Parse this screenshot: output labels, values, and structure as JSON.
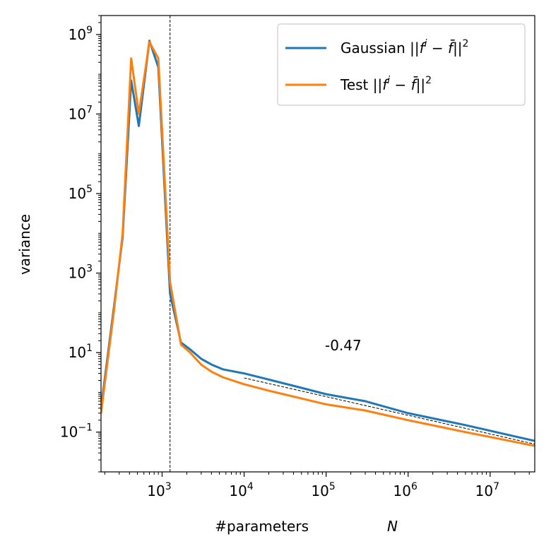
{
  "chart_data": {
    "type": "line",
    "xscale": "log",
    "yscale": "log",
    "xlabel": "#parameters",
    "xlabel_symbol": "N",
    "ylabel": "variance",
    "xlim": [
      180,
      35000000
    ],
    "ylim": [
      0.01,
      3000000000
    ],
    "x_ticks": [
      {
        "value": 1000,
        "base": "10",
        "exp": "3"
      },
      {
        "value": 10000,
        "base": "10",
        "exp": "4"
      },
      {
        "value": 100000,
        "base": "10",
        "exp": "5"
      },
      {
        "value": 1000000,
        "base": "10",
        "exp": "6"
      },
      {
        "value": 10000000,
        "base": "10",
        "exp": "7"
      }
    ],
    "y_ticks": [
      {
        "value": 0.1,
        "base": "10",
        "exp": "−1"
      },
      {
        "value": 10,
        "base": "10",
        "exp": "1"
      },
      {
        "value": 1000,
        "base": "10",
        "exp": "3"
      },
      {
        "value": 100000,
        "base": "10",
        "exp": "5"
      },
      {
        "value": 10000000,
        "base": "10",
        "exp": "7"
      },
      {
        "value": 1000000000,
        "base": "10",
        "exp": "9"
      }
    ],
    "grid": false,
    "legend_position": "top-right",
    "series": [
      {
        "name": "Gaussian ||f^i − f̄||^2",
        "legend_prefix": "Gaussian ",
        "color": "#1f77b4",
        "x": [
          180,
          260,
          330,
          420,
          520,
          700,
          900,
          1250,
          1700,
          2200,
          3000,
          4000,
          5500,
          10000,
          20000,
          50000,
          100000,
          300000,
          1000000,
          5000000,
          35000000
        ],
        "y": [
          0.4,
          150,
          8000,
          70000000,
          5000000,
          700000000,
          150000000,
          300,
          18,
          12,
          7,
          5,
          3.8,
          3,
          2.1,
          1.3,
          0.9,
          0.6,
          0.3,
          0.15,
          0.06
        ]
      },
      {
        "name": "Test ||f^i − f̄||^2",
        "legend_prefix": "Test ",
        "color": "#ff7f0e",
        "x": [
          180,
          260,
          330,
          420,
          520,
          700,
          900,
          1250,
          1700,
          2200,
          3000,
          4000,
          5500,
          10000,
          20000,
          50000,
          100000,
          300000,
          1000000,
          5000000,
          35000000
        ],
        "y": [
          0.3,
          120,
          10000,
          250000000,
          10000000,
          650000000,
          250000000,
          600,
          16,
          10,
          5,
          3.3,
          2.4,
          1.6,
          1.1,
          0.7,
          0.5,
          0.35,
          0.2,
          0.1,
          0.045
        ]
      }
    ],
    "reference_line": {
      "x": [
        10000,
        35000000
      ],
      "y": [
        2.3,
        0.05
      ],
      "color": "#000000",
      "style": "dashed"
    },
    "vline": {
      "x": 1250,
      "color": "#000000",
      "style": "dashed"
    },
    "annotation": {
      "text": "-0.47",
      "x": 100000,
      "y": 10
    }
  }
}
